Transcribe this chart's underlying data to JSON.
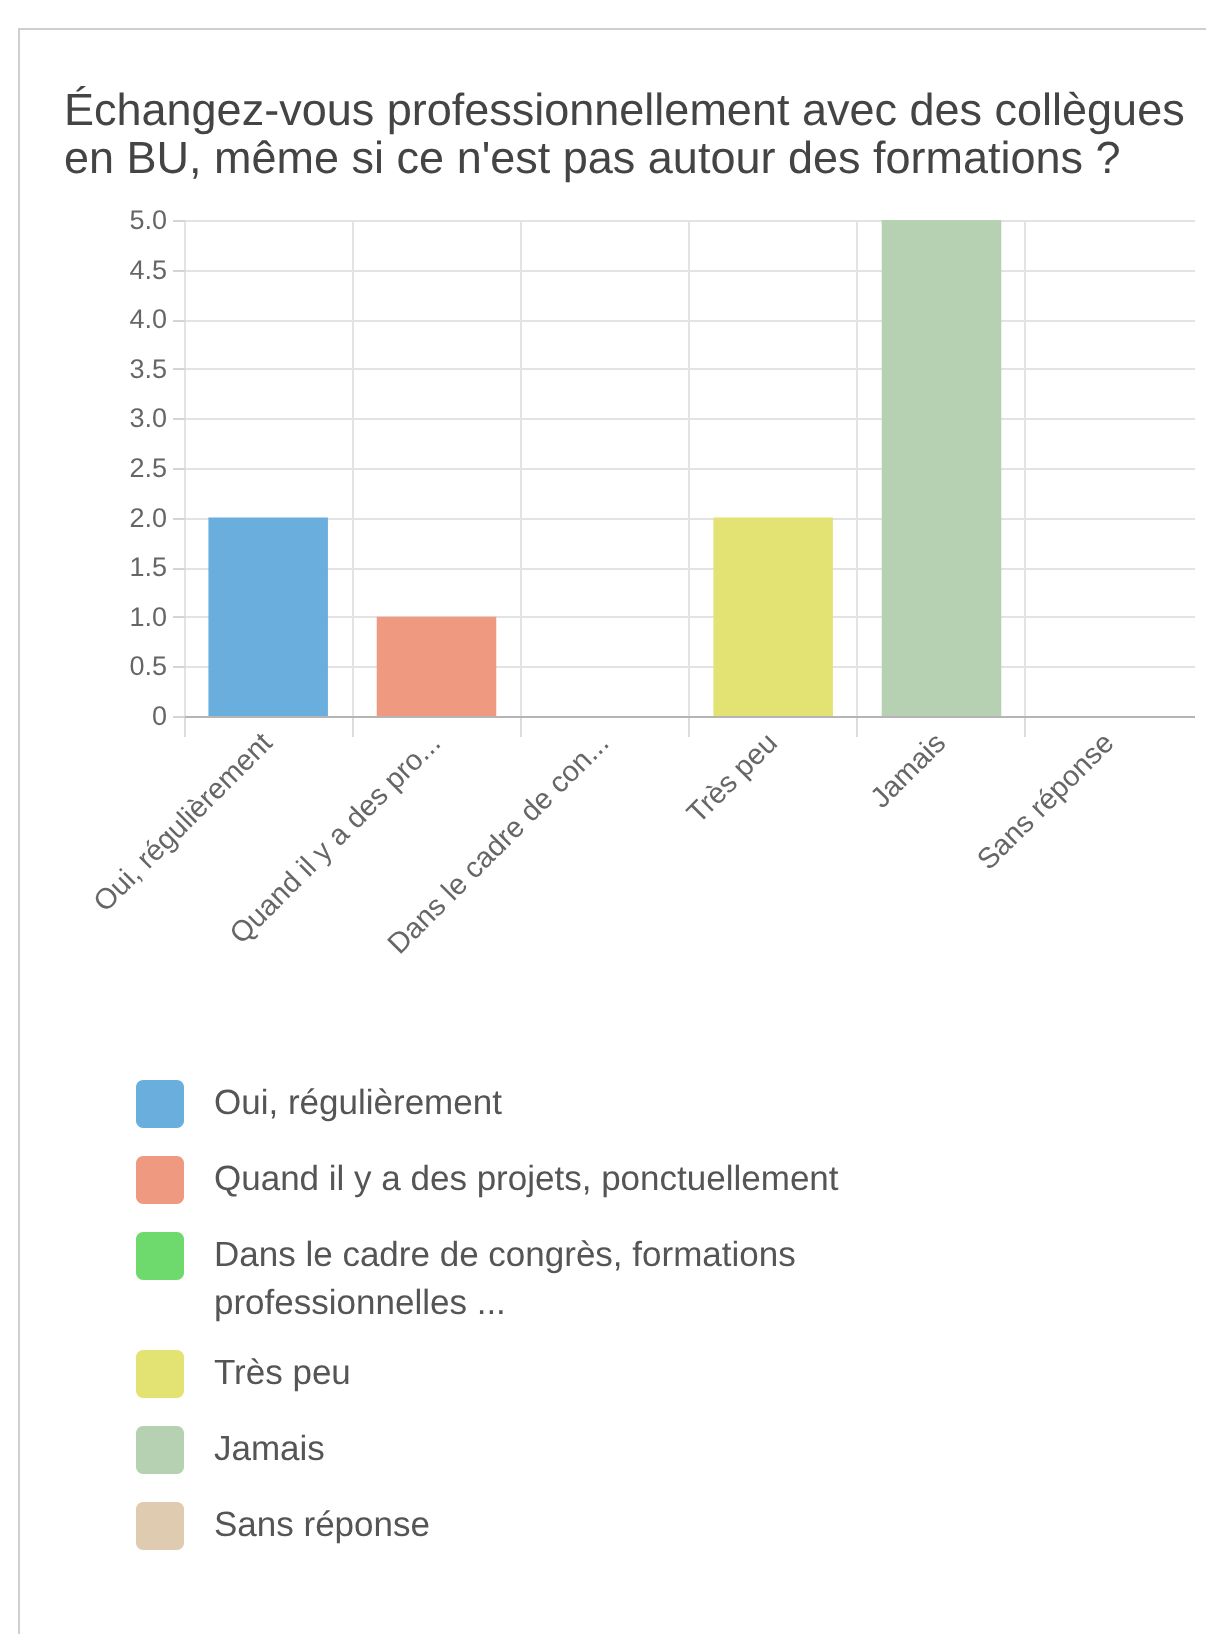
{
  "chart_data": {
    "type": "bar",
    "title": "Échangez-vous professionnellement avec des collègues en BU, même si ce n'est pas autour des formations ?",
    "categories": [
      "Oui, régulièrement",
      "Quand il y a des pro...",
      "Dans le cadre de con...",
      "Très peu",
      "Jamais",
      "Sans réponse"
    ],
    "series": [
      {
        "name": "Oui, régulièrement",
        "color": "#6aaedd",
        "values": [
          2,
          null,
          null,
          null,
          null,
          null
        ]
      },
      {
        "name": "Quand il y a des projets, ponctuellement",
        "color": "#ef9a80",
        "values": [
          null,
          1,
          null,
          null,
          null,
          null
        ]
      },
      {
        "name": "Dans le cadre de congrès, formations professionnelles ...",
        "color": "#6ed96c",
        "values": [
          null,
          null,
          0,
          null,
          null,
          null
        ]
      },
      {
        "name": "Très peu",
        "color": "#e2e373",
        "values": [
          null,
          null,
          null,
          2,
          null,
          null
        ]
      },
      {
        "name": "Jamais",
        "color": "#b5d1b1",
        "values": [
          null,
          null,
          null,
          null,
          5,
          null
        ]
      },
      {
        "name": "Sans réponse",
        "color": "#dfcbb0",
        "values": [
          null,
          null,
          null,
          null,
          null,
          0
        ]
      }
    ],
    "ylim": [
      0,
      5
    ],
    "yticks": [
      0,
      0.5,
      {
        "value": 1,
        "label": "1.0"
      },
      1.5,
      {
        "value": 2,
        "label": "2.0"
      },
      2.5,
      {
        "value": 3,
        "label": "3.0"
      },
      3.5,
      {
        "value": 4,
        "label": "4.0"
      },
      4.5,
      {
        "value": 5,
        "label": "5.0"
      }
    ],
    "grid": true,
    "legend": "bottom left"
  }
}
